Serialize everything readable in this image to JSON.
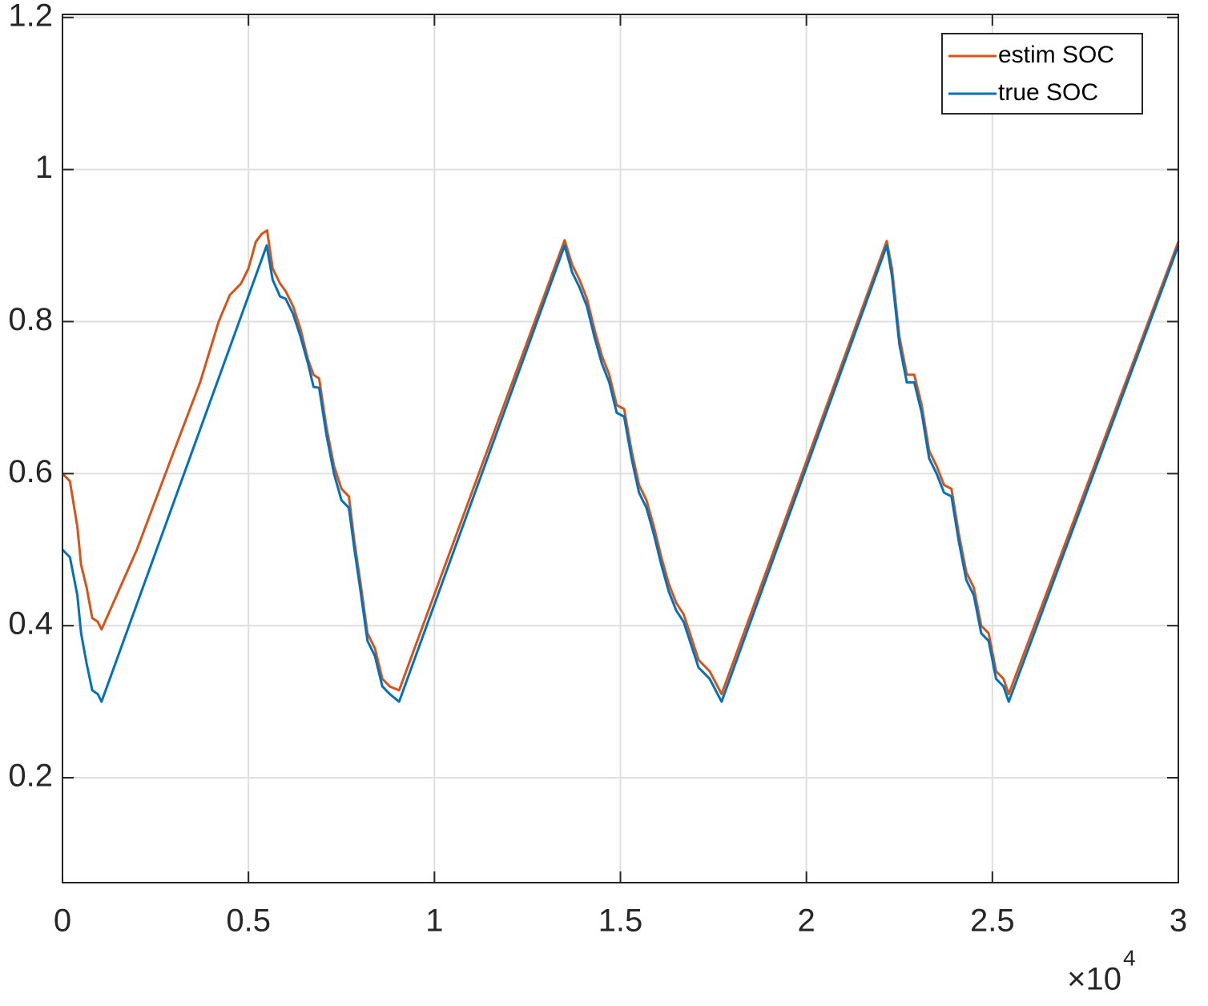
{
  "chart_data": {
    "type": "line",
    "xlim": [
      0,
      3
    ],
    "xticks": [
      0,
      0.5,
      1,
      1.5,
      2,
      2.5,
      3
    ],
    "x_offset_text": [
      "×10",
      "4"
    ],
    "ylim": [
      0.062,
      1.204
    ],
    "yticks": [
      0.2,
      0.4,
      0.6,
      0.8,
      1,
      1.2
    ],
    "grid": true,
    "legend": "upper right",
    "series": [
      {
        "name": "estim SOC",
        "color": "#D95319",
        "x": [
          0,
          0.02,
          0.04,
          0.05,
          0.065,
          0.08,
          0.095,
          0.105,
          0.2,
          0.3,
          0.37,
          0.42,
          0.45,
          0.48,
          0.5,
          0.52,
          0.535,
          0.55,
          0.565,
          0.585,
          0.6,
          0.62,
          0.64,
          0.66,
          0.675,
          0.69,
          0.71,
          0.73,
          0.75,
          0.77,
          0.785,
          0.8,
          0.82,
          0.84,
          0.86,
          0.88,
          0.905,
          1.35,
          1.37,
          1.39,
          1.41,
          1.43,
          1.45,
          1.47,
          1.49,
          1.51,
          1.53,
          1.55,
          1.57,
          1.59,
          1.61,
          1.63,
          1.65,
          1.67,
          1.69,
          1.71,
          1.74,
          1.772,
          2.216,
          2.23,
          2.25,
          2.27,
          2.29,
          2.31,
          2.33,
          2.35,
          2.37,
          2.39,
          2.41,
          2.43,
          2.45,
          2.47,
          2.49,
          2.51,
          2.53,
          2.544,
          3
        ],
        "values": [
          0.6,
          0.59,
          0.53,
          0.48,
          0.45,
          0.41,
          0.405,
          0.395,
          0.5,
          0.63,
          0.72,
          0.8,
          0.835,
          0.85,
          0.87,
          0.905,
          0.915,
          0.92,
          0.87,
          0.85,
          0.84,
          0.82,
          0.79,
          0.75,
          0.73,
          0.725,
          0.66,
          0.61,
          0.58,
          0.57,
          0.51,
          0.46,
          0.39,
          0.37,
          0.33,
          0.32,
          0.315,
          0.907,
          0.875,
          0.855,
          0.83,
          0.79,
          0.755,
          0.73,
          0.69,
          0.685,
          0.63,
          0.585,
          0.565,
          0.53,
          0.49,
          0.455,
          0.43,
          0.415,
          0.385,
          0.355,
          0.34,
          0.31,
          0.906,
          0.87,
          0.78,
          0.73,
          0.73,
          0.69,
          0.63,
          0.61,
          0.585,
          0.58,
          0.52,
          0.47,
          0.45,
          0.4,
          0.39,
          0.34,
          0.33,
          0.31,
          0.905
        ]
      },
      {
        "name": "true SOC",
        "color": "#0072BD",
        "x": [
          0,
          0.02,
          0.04,
          0.05,
          0.065,
          0.08,
          0.095,
          0.105,
          0.549,
          0.565,
          0.585,
          0.6,
          0.62,
          0.64,
          0.66,
          0.675,
          0.69,
          0.71,
          0.73,
          0.75,
          0.77,
          0.785,
          0.8,
          0.82,
          0.84,
          0.86,
          0.88,
          0.905,
          1.35,
          1.37,
          1.39,
          1.41,
          1.43,
          1.45,
          1.47,
          1.49,
          1.51,
          1.53,
          1.55,
          1.57,
          1.59,
          1.61,
          1.63,
          1.65,
          1.67,
          1.69,
          1.71,
          1.74,
          1.772,
          2.216,
          2.23,
          2.25,
          2.27,
          2.29,
          2.31,
          2.33,
          2.35,
          2.37,
          2.39,
          2.41,
          2.43,
          2.45,
          2.47,
          2.49,
          2.51,
          2.53,
          2.544,
          3
        ],
        "values": [
          0.5,
          0.49,
          0.44,
          0.39,
          0.35,
          0.315,
          0.31,
          0.3,
          0.9,
          0.855,
          0.833,
          0.83,
          0.81,
          0.78,
          0.745,
          0.714,
          0.713,
          0.65,
          0.6,
          0.565,
          0.555,
          0.5,
          0.45,
          0.38,
          0.36,
          0.32,
          0.31,
          0.3,
          0.9,
          0.865,
          0.845,
          0.82,
          0.78,
          0.745,
          0.72,
          0.68,
          0.675,
          0.62,
          0.575,
          0.555,
          0.52,
          0.48,
          0.445,
          0.42,
          0.405,
          0.375,
          0.345,
          0.33,
          0.3,
          0.9,
          0.86,
          0.77,
          0.72,
          0.72,
          0.68,
          0.62,
          0.6,
          0.575,
          0.57,
          0.51,
          0.46,
          0.44,
          0.39,
          0.38,
          0.33,
          0.32,
          0.3,
          0.9
        ]
      }
    ]
  }
}
